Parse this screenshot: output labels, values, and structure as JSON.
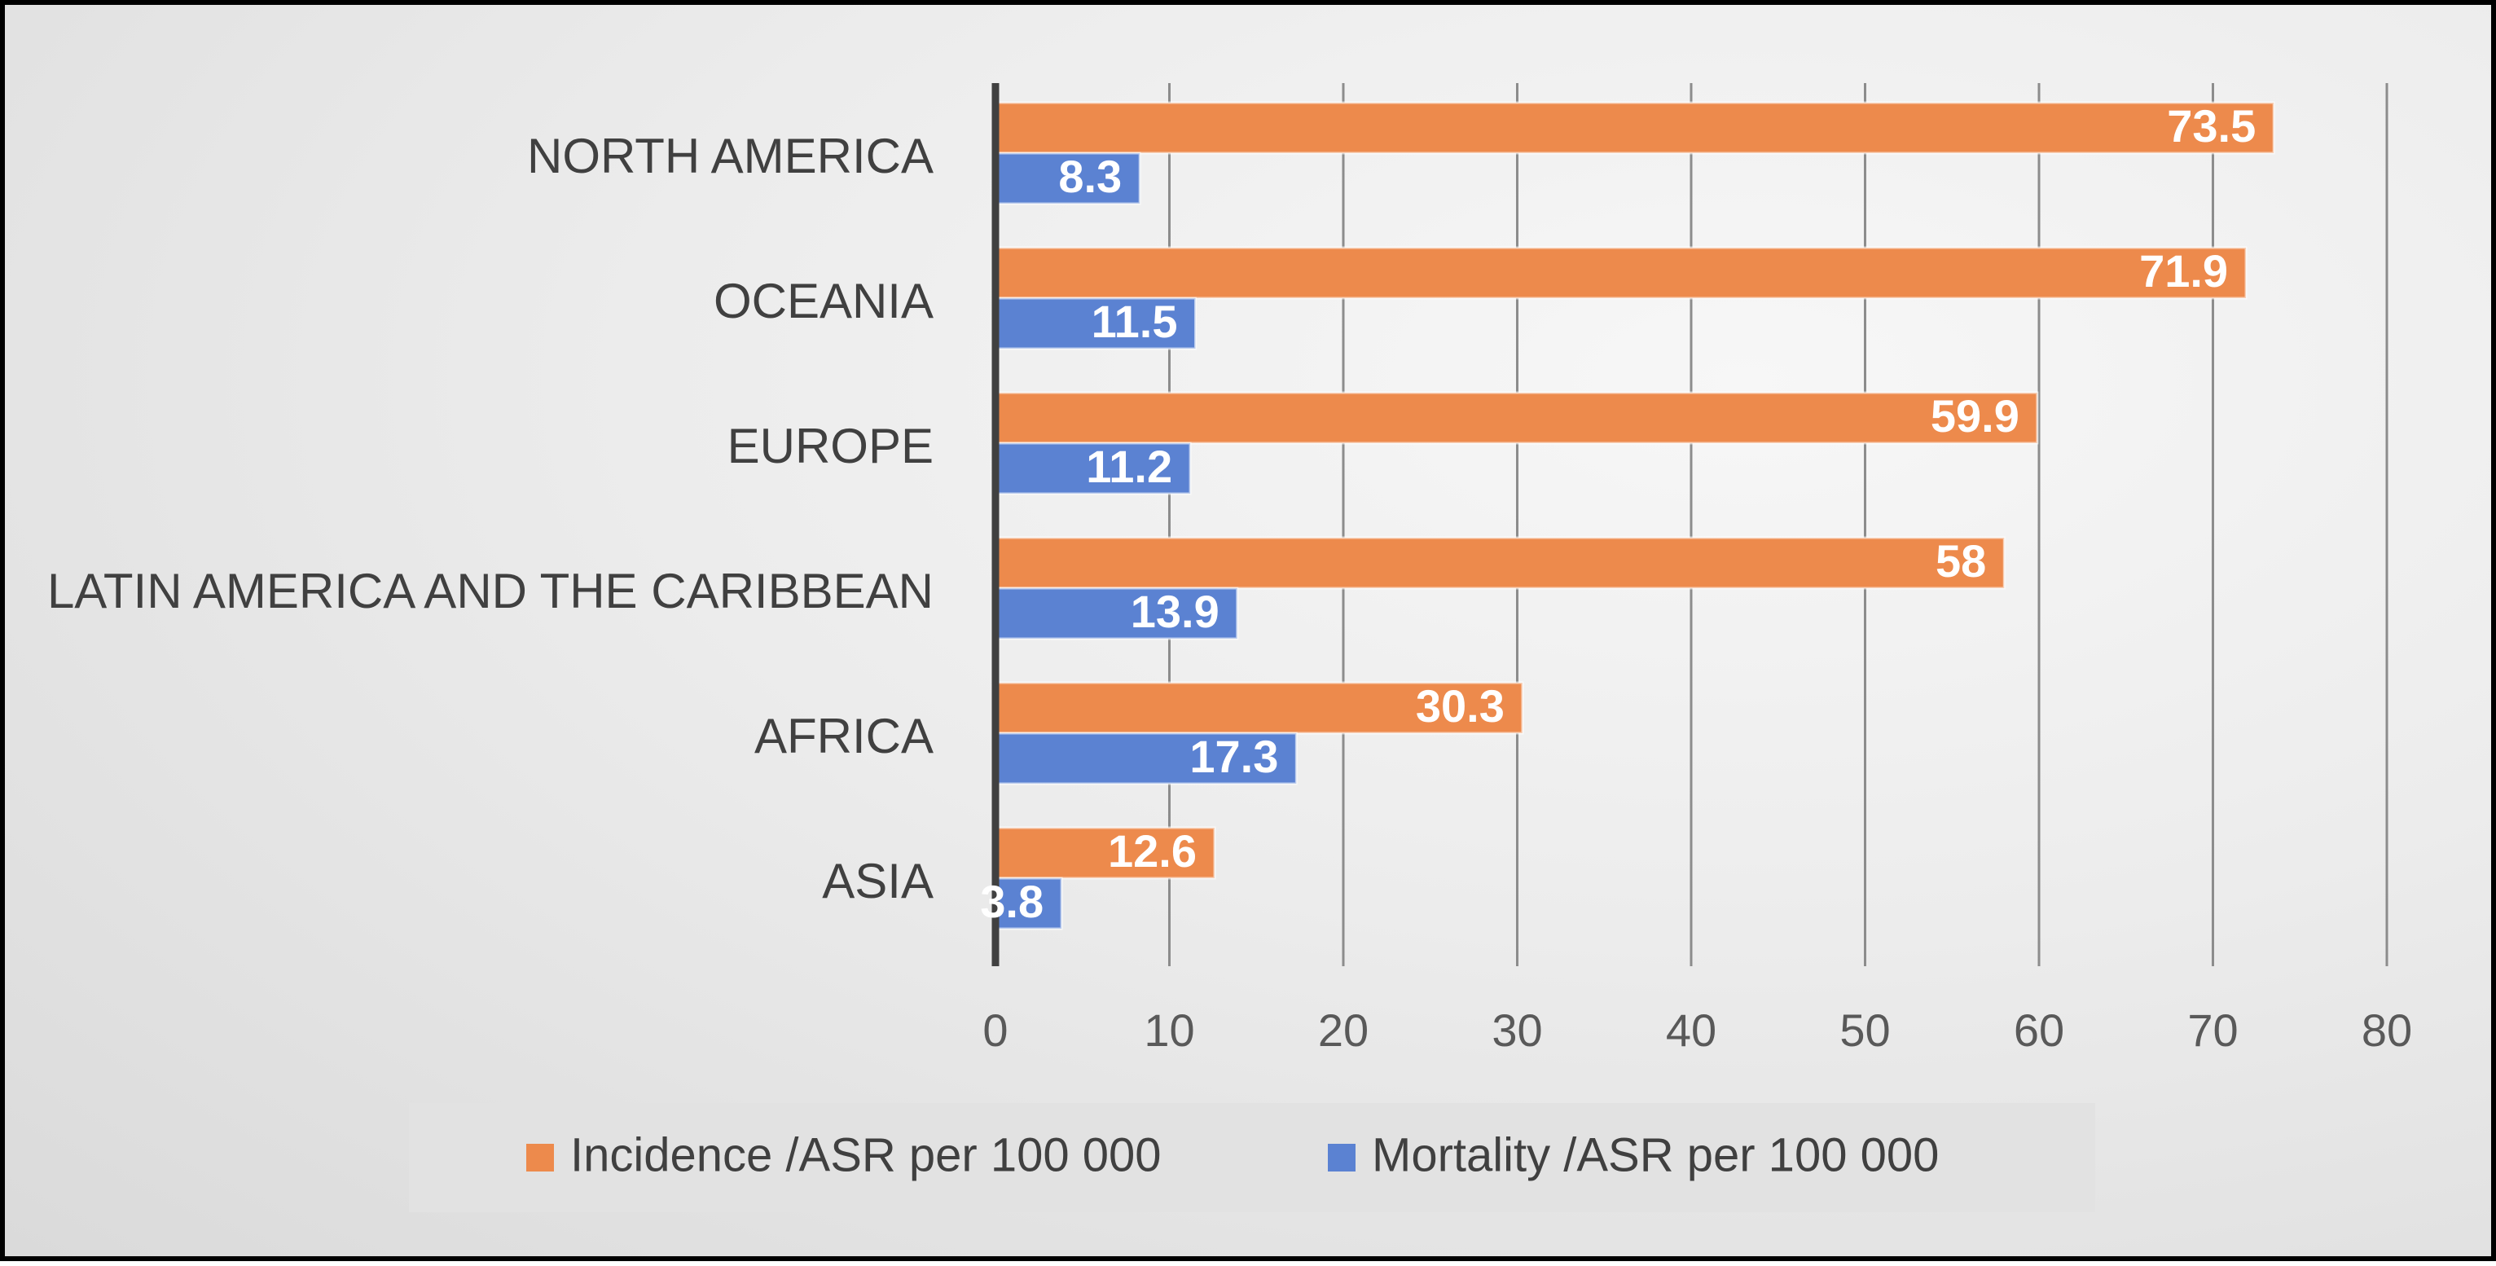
{
  "chart_data": {
    "type": "bar",
    "orientation": "horizontal",
    "categories": [
      "NORTH AMERICA",
      "OCEANIA",
      "EUROPE",
      "LATIN AMERICA AND THE CARIBBEAN",
      "AFRICA",
      "ASIA"
    ],
    "series": [
      {
        "name": "Incidence /ASR per 100 000",
        "color": "#ED8A4C",
        "values": [
          73.5,
          71.9,
          59.9,
          58,
          30.3,
          12.6
        ]
      },
      {
        "name": "Mortality /ASR per 100 000",
        "color": "#5B82D2",
        "values": [
          8.3,
          11.5,
          11.2,
          13.9,
          17.3,
          3.8
        ]
      }
    ],
    "x_ticks": [
      "0",
      "10",
      "20",
      "30",
      "40",
      "50",
      "60",
      "70",
      "80"
    ],
    "xlim": [
      0,
      80
    ],
    "title": "",
    "xlabel": "",
    "ylabel": "",
    "grid": true,
    "legend_position": "bottom"
  }
}
